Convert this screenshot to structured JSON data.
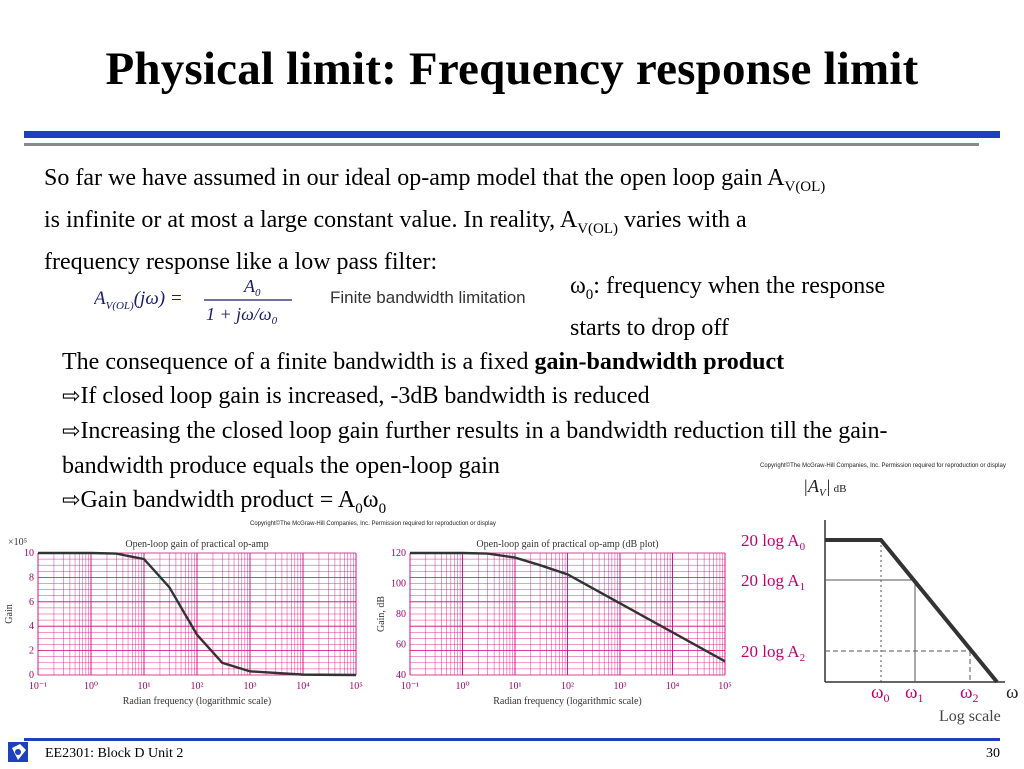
{
  "slide": {
    "title": "Physical limit: Frequency response limit",
    "p1_a": "So far we have assumed in our ideal op-amp model that the open loop gain A",
    "p1_sub": "V(OL)",
    "p1_b": "is infinite or at most a large constant value.  In reality, A",
    "p1_sub2": "V(OL)",
    "p1_c": " varies with a",
    "p1_d": "frequency response like a low pass filter:",
    "formula_lhs": "A",
    "formula_sub": "V(OL)",
    "formula_arg": "(jω) = ",
    "formula_num": "A",
    "formula_num_sub": "0",
    "formula_den": "1 + jω/ω",
    "formula_den_sub": "0",
    "fbw": "Finite bandwidth limitation",
    "omega_sym": "ω",
    "omega_sub": "0",
    "omega_note": ": frequency when the response starts to drop off",
    "p2_a": "The consequence of a finite bandwidth is a fixed ",
    "p2_bold": "gain-bandwidth product",
    "b1": "If closed loop gain is increased, -3dB bandwidth is reduced",
    "b2": "Increasing the closed loop gain further results in a bandwidth reduction till the gain-bandwidth produce equals the open-loop gain",
    "b3_a": "Gain bandwidth product = A",
    "b3_sub1": "0",
    "b3_w": "ω",
    "b3_sub2": "0",
    "copyright": "Copyright©The McGraw-Hill Companies, Inc. Permission required for reproduction or display",
    "footer_left": "EE2301: Block D Unit 2",
    "footer_right": "30"
  },
  "colors": {
    "accent_blue": "#1f3fbd",
    "grid_pink": "#d0007a",
    "curve": "#333333"
  },
  "chart_data": [
    {
      "type": "line",
      "title": "Open-loop gain of practical op-amp",
      "xlabel": "Radian frequency (logarithmic scale)",
      "ylabel": "Gain",
      "y_multiplier": "×10⁵",
      "x_scale": "log",
      "xlim": [
        0.1,
        100000
      ],
      "ylim": [
        0,
        10
      ],
      "x_ticks": [
        "10⁻¹",
        "10⁰",
        "10¹",
        "10²",
        "10³",
        "10⁴",
        "10⁵"
      ],
      "y_ticks": [
        "0",
        "2",
        "4",
        "6",
        "8",
        "10"
      ],
      "x": [
        0.1,
        1,
        3,
        10,
        30,
        100,
        300,
        1000,
        10000,
        100000
      ],
      "y": [
        10,
        10,
        9.95,
        9.5,
        7.2,
        3.3,
        1.0,
        0.3,
        0.03,
        0
      ]
    },
    {
      "type": "line",
      "title": "Open-loop gain of practical op-amp (dB plot)",
      "xlabel": "Radian frequency (logarithmic scale)",
      "ylabel": "Gain, dB",
      "x_scale": "log",
      "xlim": [
        0.1,
        100000
      ],
      "ylim": [
        40,
        120
      ],
      "x_ticks": [
        "10⁻¹",
        "10⁰",
        "10¹",
        "10²",
        "10³",
        "10⁴",
        "10⁵"
      ],
      "y_ticks": [
        "40",
        "60",
        "80",
        "100",
        "120"
      ],
      "x": [
        0.1,
        1,
        3,
        10,
        30,
        100,
        1000,
        10000,
        100000
      ],
      "y": [
        120,
        120,
        119.6,
        117,
        112,
        106,
        87,
        68,
        49
      ]
    },
    {
      "type": "line",
      "title": "",
      "ylabel_parts": [
        "|A",
        "V",
        "|",
        "dB"
      ],
      "y_labels": [
        {
          "t": "20  log  A",
          "s": "0"
        },
        {
          "t": "20  log  A",
          "s": "1"
        },
        {
          "t": "20  log  A",
          "s": "2"
        }
      ],
      "x_labels": [
        {
          "t": "ω",
          "s": "0"
        },
        {
          "t": "ω",
          "s": "1"
        },
        {
          "t": "ω",
          "s": "2"
        },
        {
          "t": "ω",
          "s": ""
        }
      ],
      "scale_label": "Log scale"
    }
  ]
}
